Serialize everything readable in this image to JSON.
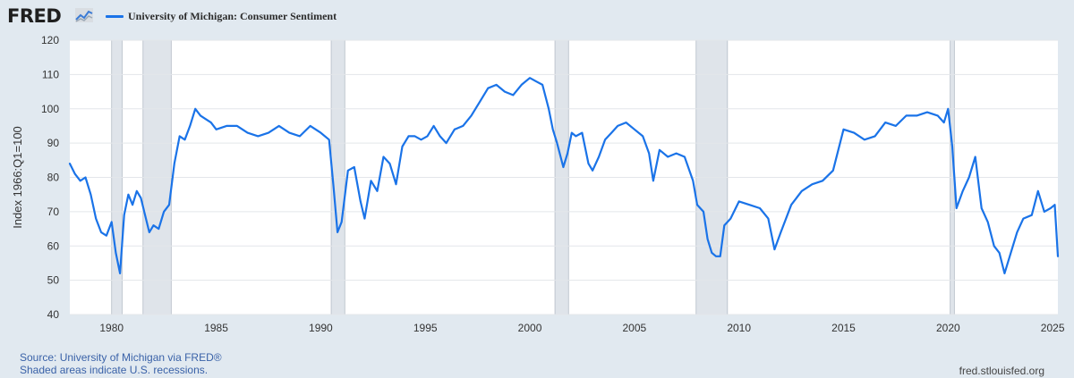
{
  "header": {
    "logo_text": "FRED",
    "logo_icon": "chart-line-icon",
    "series_color": "#1a73e8"
  },
  "chart_data": {
    "type": "line",
    "title": "",
    "xlabel": "",
    "ylabel": "Index 1966:Q1=100",
    "xlim": [
      1978.0,
      2025.25
    ],
    "ylim": [
      40,
      120
    ],
    "yticks": [
      40,
      50,
      60,
      70,
      80,
      90,
      100,
      110,
      120
    ],
    "xticks": [
      1980,
      1985,
      1990,
      1995,
      2000,
      2005,
      2010,
      2015,
      2020,
      2025
    ],
    "grid": true,
    "legend": "top-left",
    "recession_shading": [
      [
        1980.0,
        1980.5
      ],
      [
        1981.5,
        1982.85
      ],
      [
        1990.5,
        1991.15
      ],
      [
        2001.2,
        2001.85
      ],
      [
        2007.95,
        2009.45
      ],
      [
        2020.1,
        2020.3
      ]
    ],
    "series": [
      {
        "name": "University of Michigan: Consumer Sentiment",
        "color": "#1a73e8",
        "x": [
          1978.0,
          1978.25,
          1978.5,
          1978.75,
          1979.0,
          1979.25,
          1979.5,
          1979.75,
          1980.0,
          1980.2,
          1980.4,
          1980.6,
          1980.8,
          1981.0,
          1981.2,
          1981.4,
          1981.6,
          1981.8,
          1982.0,
          1982.25,
          1982.5,
          1982.75,
          1983.0,
          1983.25,
          1983.5,
          1983.75,
          1984.0,
          1984.25,
          1984.5,
          1984.75,
          1985.0,
          1985.5,
          1986.0,
          1986.5,
          1987.0,
          1987.5,
          1988.0,
          1988.5,
          1989.0,
          1989.5,
          1990.0,
          1990.4,
          1990.6,
          1990.8,
          1991.0,
          1991.3,
          1991.6,
          1991.9,
          1992.1,
          1992.4,
          1992.7,
          1993.0,
          1993.3,
          1993.6,
          1993.9,
          1994.2,
          1994.5,
          1994.8,
          1995.1,
          1995.4,
          1995.7,
          1996.0,
          1996.4,
          1996.8,
          1997.2,
          1997.6,
          1998.0,
          1998.4,
          1998.8,
          1999.2,
          1999.6,
          2000.0,
          2000.3,
          2000.6,
          2000.9,
          2001.1,
          2001.3,
          2001.6,
          2001.8,
          2002.0,
          2002.2,
          2002.5,
          2002.8,
          2003.0,
          2003.3,
          2003.6,
          2003.9,
          2004.2,
          2004.6,
          2005.0,
          2005.4,
          2005.7,
          2005.9,
          2006.2,
          2006.6,
          2007.0,
          2007.4,
          2007.8,
          2008.0,
          2008.3,
          2008.5,
          2008.7,
          2008.9,
          2009.1,
          2009.3,
          2009.6,
          2010.0,
          2010.5,
          2011.0,
          2011.4,
          2011.7,
          2012.0,
          2012.5,
          2013.0,
          2013.5,
          2014.0,
          2014.5,
          2015.0,
          2015.5,
          2016.0,
          2016.5,
          2017.0,
          2017.5,
          2018.0,
          2018.5,
          2019.0,
          2019.5,
          2019.8,
          2020.0,
          2020.2,
          2020.4,
          2020.7,
          2021.0,
          2021.3,
          2021.6,
          2021.9,
          2022.2,
          2022.45,
          2022.7,
          2023.0,
          2023.3,
          2023.6,
          2024.0,
          2024.3,
          2024.6,
          2024.9,
          2025.1,
          2025.25
        ],
        "values": [
          84,
          81,
          79,
          80,
          75,
          68,
          64,
          63,
          67,
          58,
          52,
          69,
          75,
          72,
          76,
          74,
          69,
          64,
          66,
          65,
          70,
          72,
          84,
          92,
          91,
          95,
          100,
          98,
          97,
          96,
          94,
          95,
          95,
          93,
          92,
          93,
          95,
          93,
          92,
          95,
          93,
          91,
          78,
          64,
          67,
          82,
          83,
          73,
          68,
          79,
          76,
          86,
          84,
          78,
          89,
          92,
          92,
          91,
          92,
          95,
          92,
          90,
          94,
          95,
          98,
          102,
          106,
          107,
          105,
          104,
          107,
          109,
          108,
          107,
          100,
          94,
          90,
          83,
          87,
          93,
          92,
          93,
          84,
          82,
          86,
          91,
          93,
          95,
          96,
          94,
          92,
          87,
          79,
          88,
          86,
          87,
          86,
          79,
          72,
          70,
          62,
          58,
          57,
          57,
          66,
          68,
          73,
          72,
          71,
          68,
          59,
          64,
          72,
          76,
          78,
          79,
          82,
          94,
          93,
          91,
          92,
          96,
          95,
          98,
          98,
          99,
          98,
          96,
          100,
          89,
          71,
          76,
          80,
          86,
          71,
          67,
          60,
          58,
          52,
          58,
          64,
          68,
          69,
          76,
          70,
          71,
          72,
          57
        ]
      }
    ]
  },
  "footer": {
    "source": "Source: University of Michigan via FRED®",
    "note": "Shaded areas indicate U.S. recessions.",
    "site": "fred.stlouisfed.org"
  }
}
